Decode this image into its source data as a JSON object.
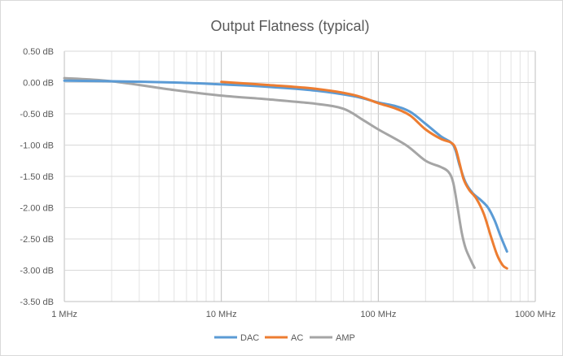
{
  "chart_data": {
    "type": "line",
    "title": "Output Flatness (typical)",
    "xlabel": "",
    "ylabel": "",
    "x_scale": "log",
    "xlim": [
      1,
      1000
    ],
    "ylim": [
      -3.5,
      0.5
    ],
    "grid": true,
    "legend_position": "bottom",
    "x_ticks": [
      {
        "value": 1,
        "label": "1 MHz"
      },
      {
        "value": 10,
        "label": "10 MHz"
      },
      {
        "value": 100,
        "label": "100 MHz"
      },
      {
        "value": 1000,
        "label": "1000 MHz"
      }
    ],
    "y_ticks": [
      {
        "value": 0.5,
        "label": "0.50 dB"
      },
      {
        "value": 0.0,
        "label": "0.00 dB"
      },
      {
        "value": -0.5,
        "label": "-0.50 dB"
      },
      {
        "value": -1.0,
        "label": "-1.00 dB"
      },
      {
        "value": -1.5,
        "label": "-1.50 dB"
      },
      {
        "value": -2.0,
        "label": "-2.00 dB"
      },
      {
        "value": -2.5,
        "label": "-2.50 dB"
      },
      {
        "value": -3.0,
        "label": "-3.00 dB"
      },
      {
        "value": -3.5,
        "label": "-3.50 dB"
      }
    ],
    "series": [
      {
        "name": "DAC",
        "color": "#5b9bd5",
        "points": [
          [
            1,
            0.03
          ],
          [
            2,
            0.02
          ],
          [
            5,
            0.0
          ],
          [
            10,
            -0.03
          ],
          [
            20,
            -0.07
          ],
          [
            40,
            -0.13
          ],
          [
            70,
            -0.22
          ],
          [
            100,
            -0.32
          ],
          [
            130,
            -0.38
          ],
          [
            160,
            -0.47
          ],
          [
            200,
            -0.66
          ],
          [
            250,
            -0.86
          ],
          [
            300,
            -1.0
          ],
          [
            330,
            -1.33
          ],
          [
            360,
            -1.6
          ],
          [
            400,
            -1.77
          ],
          [
            450,
            -1.88
          ],
          [
            500,
            -2.0
          ],
          [
            550,
            -2.2
          ],
          [
            600,
            -2.45
          ],
          [
            660,
            -2.7
          ]
        ]
      },
      {
        "name": "AC",
        "color": "#ed7d31",
        "points": [
          [
            10,
            0.01
          ],
          [
            20,
            -0.04
          ],
          [
            40,
            -0.1
          ],
          [
            70,
            -0.2
          ],
          [
            100,
            -0.33
          ],
          [
            130,
            -0.42
          ],
          [
            160,
            -0.53
          ],
          [
            200,
            -0.75
          ],
          [
            250,
            -0.9
          ],
          [
            290,
            -0.96
          ],
          [
            310,
            -1.05
          ],
          [
            330,
            -1.3
          ],
          [
            350,
            -1.55
          ],
          [
            380,
            -1.72
          ],
          [
            420,
            -1.85
          ],
          [
            470,
            -2.1
          ],
          [
            520,
            -2.45
          ],
          [
            570,
            -2.75
          ],
          [
            620,
            -2.92
          ],
          [
            660,
            -2.97
          ]
        ]
      },
      {
        "name": "AMP",
        "color": "#a5a5a5",
        "points": [
          [
            1,
            0.07
          ],
          [
            2,
            0.02
          ],
          [
            5,
            -0.12
          ],
          [
            10,
            -0.21
          ],
          [
            20,
            -0.27
          ],
          [
            40,
            -0.34
          ],
          [
            60,
            -0.42
          ],
          [
            80,
            -0.6
          ],
          [
            100,
            -0.75
          ],
          [
            150,
            -1.0
          ],
          [
            200,
            -1.25
          ],
          [
            250,
            -1.35
          ],
          [
            280,
            -1.43
          ],
          [
            300,
            -1.6
          ],
          [
            320,
            -2.0
          ],
          [
            340,
            -2.4
          ],
          [
            360,
            -2.65
          ],
          [
            390,
            -2.85
          ],
          [
            410,
            -2.96
          ]
        ]
      }
    ]
  }
}
